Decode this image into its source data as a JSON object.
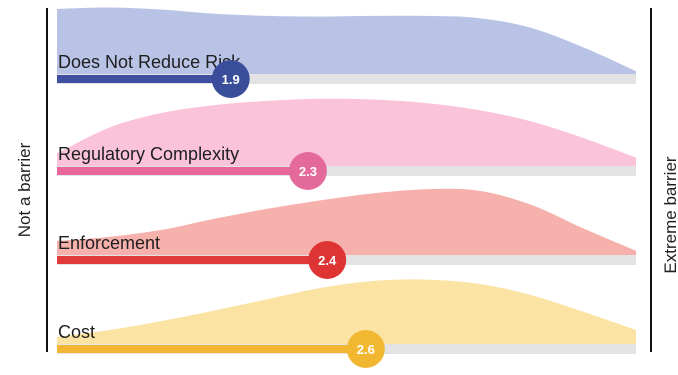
{
  "chart_data": {
    "type": "bar",
    "orientation": "horizontal",
    "title": "",
    "xlim": [
      1,
      4
    ],
    "left_axis_label": "Not a barrier",
    "right_axis_label": "Extreme barrier",
    "grid": false,
    "series": [
      {
        "label": "Does Not Reduce Risk",
        "value": 1.9,
        "value_label": "1.9",
        "color": "#3d4f9e",
        "bubble_color": "#3a4d9a",
        "density_color": "#b9c3e6",
        "density": [
          0.93,
          0.95,
          0.92,
          0.86,
          0.83,
          0.82,
          0.83,
          0.83,
          0.8,
          0.66,
          0.38,
          0.04
        ]
      },
      {
        "label": "Regulatory Complexity",
        "value": 2.3,
        "value_label": "2.3",
        "color": "#e8669a",
        "bubble_color": "#e46a9c",
        "density_color": "#fac3d9",
        "density": [
          0.18,
          0.55,
          0.76,
          0.87,
          0.93,
          0.96,
          0.95,
          0.9,
          0.8,
          0.64,
          0.4,
          0.12
        ]
      },
      {
        "label": "Enforcement",
        "value": 2.4,
        "value_label": "2.4",
        "color": "#e03a3a",
        "bubble_color": "#df3434",
        "density_color": "#f6b1ad",
        "density": [
          0.2,
          0.26,
          0.36,
          0.52,
          0.66,
          0.78,
          0.88,
          0.94,
          0.92,
          0.72,
          0.38,
          0.06
        ]
      },
      {
        "label": "Cost",
        "value": 2.6,
        "value_label": "2.6",
        "color": "#f2b632",
        "bubble_color": "#f2b730",
        "density_color": "#fbe3a4",
        "density": [
          0.1,
          0.2,
          0.33,
          0.48,
          0.64,
          0.8,
          0.9,
          0.92,
          0.86,
          0.7,
          0.46,
          0.2
        ]
      }
    ]
  }
}
